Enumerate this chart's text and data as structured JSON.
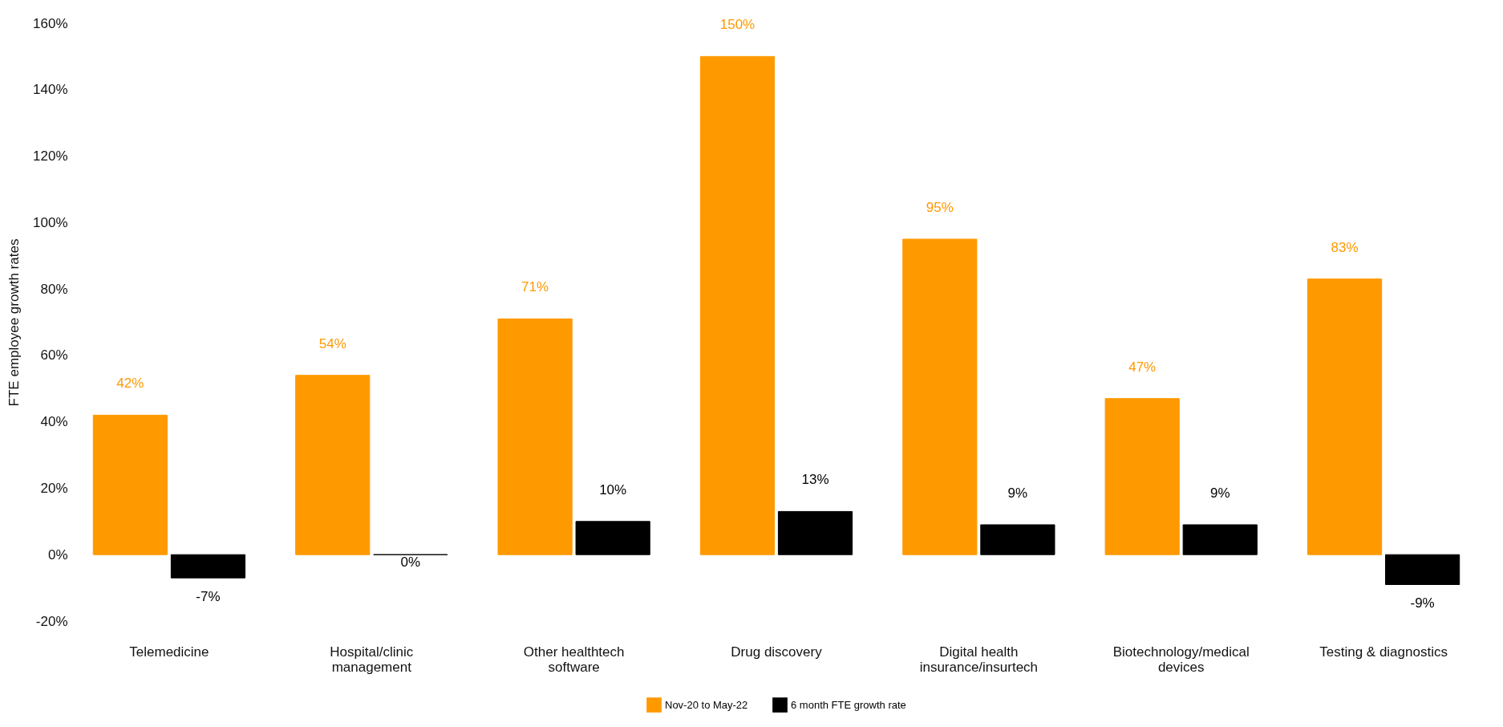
{
  "chart_data": {
    "type": "bar",
    "ylabel": "FTE employee growth rates",
    "categories": [
      "Telemedicine",
      "Hospital/clinic management",
      "Other healthtech software",
      "Drug discovery",
      "Digital health insurance/insurtech",
      "Biotechnology/medical devices",
      "Testing & diagnostics"
    ],
    "series": [
      {
        "name": "Nov-20 to May-22",
        "color": "#ff9900",
        "values": [
          42,
          54,
          71,
          150,
          95,
          47,
          83
        ],
        "value_labels": [
          "42%",
          "54%",
          "71%",
          "150%",
          "95%",
          "47%",
          "83%"
        ]
      },
      {
        "name": "6 month FTE growth rate",
        "color": "#000000",
        "values": [
          -7,
          0,
          10,
          13,
          9,
          9,
          -9
        ],
        "value_labels": [
          "-7%",
          "0%",
          "10%",
          "13%",
          "9%",
          "9%",
          "-9%"
        ]
      }
    ],
    "ylim": [
      -20,
      160
    ],
    "yticks": [
      {
        "value": -20,
        "label": "-20%"
      },
      {
        "value": 0,
        "label": "0%"
      },
      {
        "value": 20,
        "label": "20%"
      },
      {
        "value": 40,
        "label": "40%"
      },
      {
        "value": 60,
        "label": "60%"
      },
      {
        "value": 80,
        "label": "80%"
      },
      {
        "value": 100,
        "label": "100%"
      },
      {
        "value": 120,
        "label": "120%"
      },
      {
        "value": 140,
        "label": "140%"
      },
      {
        "value": 160,
        "label": "160%"
      }
    ],
    "grid": false,
    "legend": "bottom"
  }
}
